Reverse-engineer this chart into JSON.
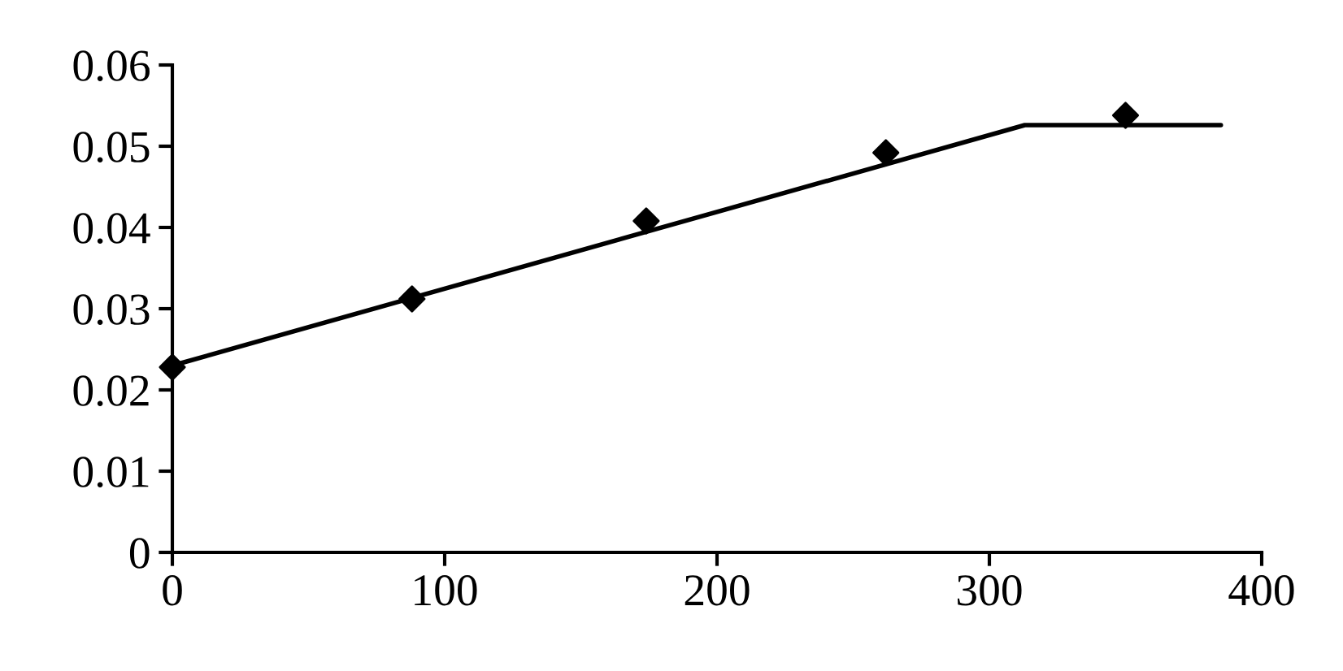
{
  "chart_data": {
    "type": "scatter",
    "xlim": [
      0,
      400
    ],
    "xticks": [
      0,
      100,
      200,
      300,
      400
    ],
    "ylim": [
      0,
      0.06
    ],
    "yticks": [
      0,
      0.01,
      0.02,
      0.03,
      0.04,
      0.05,
      0.06
    ],
    "grid": false,
    "legend": false,
    "series": [
      {
        "color": "#000000",
        "marker": "diamond",
        "x": [
          0,
          88,
          174,
          262,
          350
        ],
        "values": [
          0.0228,
          0.0312,
          0.0408,
          0.0492,
          0.0538
        ]
      },
      {
        "type": "line",
        "color": "#000000",
        "marker": "none",
        "line_style": "solid",
        "x": [
          0,
          313,
          385
        ],
        "values": [
          0.023,
          0.0526,
          0.0526
        ]
      }
    ]
  }
}
